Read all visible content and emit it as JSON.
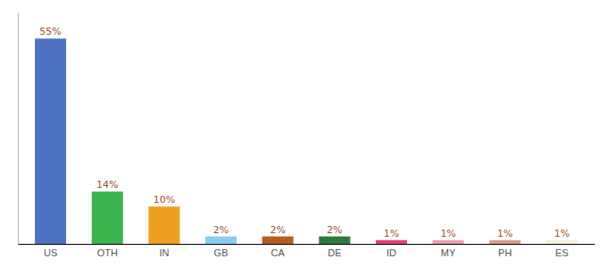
{
  "chart_data": {
    "type": "bar",
    "categories": [
      "US",
      "OTH",
      "IN",
      "GB",
      "CA",
      "DE",
      "ID",
      "MY",
      "PH",
      "ES"
    ],
    "values": [
      55,
      14,
      10,
      2,
      2,
      2,
      1,
      1,
      1,
      1
    ],
    "colors": [
      "#4d72c4",
      "#3db34d",
      "#f0a020",
      "#88ccee",
      "#b85c20",
      "#2d7a3d",
      "#e8407a",
      "#e8a0b0",
      "#d8a090",
      "#f5f0e0"
    ],
    "value_labels": [
      "55%",
      "14%",
      "10%",
      "2%",
      "2%",
      "2%",
      "1%",
      "1%",
      "1%",
      "1%"
    ],
    "data_labels": true,
    "ylim": [
      0,
      62
    ],
    "tick_labels": "x"
  }
}
